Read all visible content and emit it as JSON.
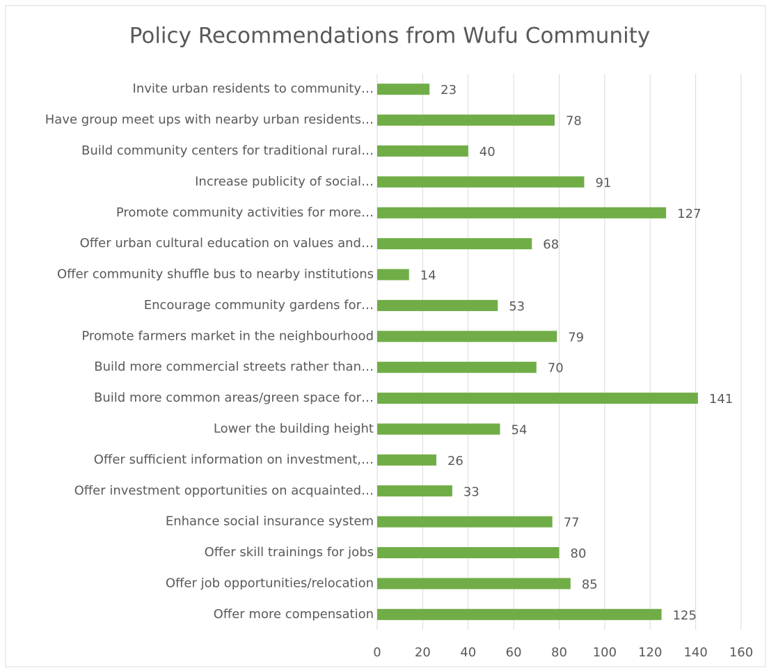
{
  "chart_data": {
    "type": "hbar",
    "title": "Policy Recommendations from Wufu Community",
    "categories": [
      "Invite urban residents to community…",
      "Have group meet ups with nearby urban residents…",
      "Build community centers for traditional rural…",
      "Increase publicity of social…",
      "Promote community activities for more…",
      "Offer urban cultural education on values and…",
      "Offer community shuffle bus to nearby institutions",
      "Encourage community gardens for…",
      "Promote farmers market in the neighbourhood",
      "Build more commercial streets rather than…",
      "Build more common areas/green space for…",
      "Lower the building height",
      "Offer sufficient information on investment,…",
      "Offer investment opportunities on acquainted…",
      "Enhance social insurance system",
      "Offer skill trainings for jobs",
      "Offer job opportunities/relocation",
      "Offer more compensation"
    ],
    "values": [
      23,
      78,
      40,
      91,
      127,
      68,
      14,
      53,
      79,
      70,
      141,
      54,
      26,
      33,
      77,
      80,
      85,
      125
    ],
    "color": "#70ad47",
    "xlim": [
      0,
      160
    ],
    "xticks": [
      0,
      20,
      40,
      60,
      80,
      100,
      120,
      140,
      160
    ],
    "grid": true
  }
}
